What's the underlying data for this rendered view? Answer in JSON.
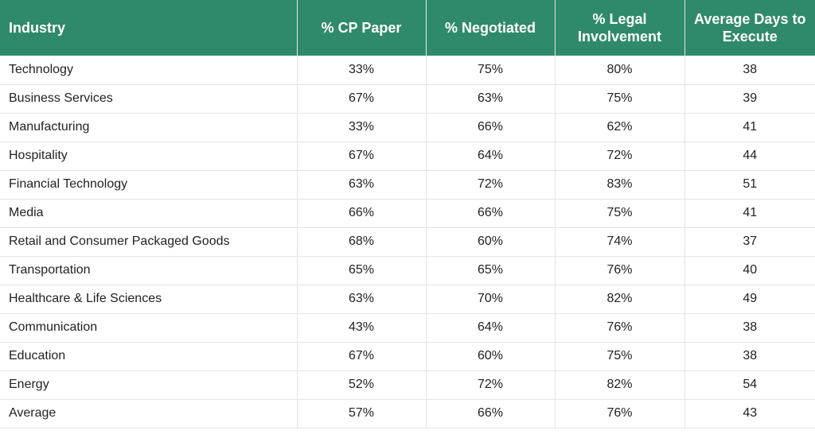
{
  "table": {
    "header": [
      "Industry",
      "% CP Paper",
      "% Negotiated",
      "% Legal Involvement",
      "Average Days to Execute"
    ],
    "rows": [
      [
        "Technology",
        "33%",
        "75%",
        "80%",
        "38"
      ],
      [
        "Business Services",
        "67%",
        "63%",
        "75%",
        "39"
      ],
      [
        "Manufacturing",
        "33%",
        "66%",
        "62%",
        "41"
      ],
      [
        "Hospitality",
        "67%",
        "64%",
        "72%",
        "44"
      ],
      [
        "Financial Technology",
        "63%",
        "72%",
        "83%",
        "51"
      ],
      [
        "Media",
        "66%",
        "66%",
        "75%",
        "41"
      ],
      [
        "Retail and Consumer Packaged Goods",
        "68%",
        "60%",
        "74%",
        "37"
      ],
      [
        "Transportation",
        "65%",
        "65%",
        "76%",
        "40"
      ],
      [
        "Healthcare & Life Sciences",
        "63%",
        "70%",
        "82%",
        "49"
      ],
      [
        "Communication",
        "43%",
        "64%",
        "76%",
        "38"
      ],
      [
        "Education",
        "67%",
        "60%",
        "75%",
        "38"
      ],
      [
        "Energy",
        "52%",
        "72%",
        "82%",
        "54"
      ],
      [
        "Average",
        "57%",
        "66%",
        "76%",
        "43"
      ]
    ]
  }
}
